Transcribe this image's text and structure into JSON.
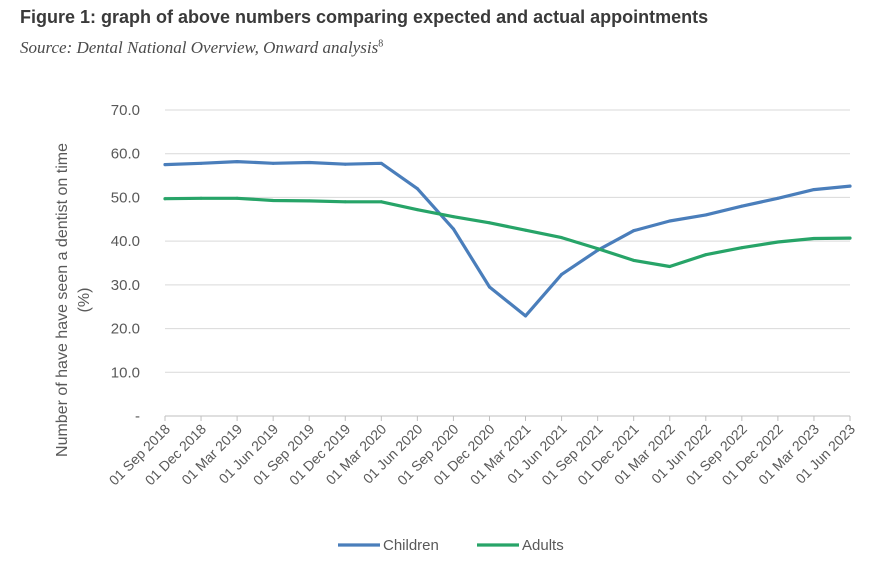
{
  "figure": {
    "title": "Figure 1: graph of above numbers comparing expected and actual appointments",
    "source": "Source: Dental National Overview, Onward analysis",
    "source_footnote": "8"
  },
  "chart_data": {
    "type": "line",
    "title": "",
    "xlabel": "",
    "ylabel_line1": "Number of have have seen a dentist on time",
    "ylabel_line2": "(%)",
    "ylim": [
      0,
      70
    ],
    "yticks": [
      {
        "value": 0,
        "label": "-"
      },
      {
        "value": 10,
        "label": "10.0"
      },
      {
        "value": 20,
        "label": "20.0"
      },
      {
        "value": 30,
        "label": "30.0"
      },
      {
        "value": 40,
        "label": "40.0"
      },
      {
        "value": 50,
        "label": "50.0"
      },
      {
        "value": 60,
        "label": "60.0"
      },
      {
        "value": 70,
        "label": "70.0"
      }
    ],
    "grid": true,
    "legend_position": "bottom",
    "categories": [
      "01 Sep 2018",
      "01 Dec 2018",
      "01 Mar 2019",
      "01 Jun 2019",
      "01 Sep 2019",
      "01 Dec 2019",
      "01 Mar 2020",
      "01 Jun 2020",
      "01 Sep 2020",
      "01 Dec 2020",
      "01 Mar 2021",
      "01 Jun 2021",
      "01 Sep 2021",
      "01 Dec 2021",
      "01 Mar 2022",
      "01 Jun 2022",
      "01 Sep 2022",
      "01 Dec 2022",
      "01 Mar 2023",
      "01 Jun 2023"
    ],
    "series": [
      {
        "name": "Children",
        "color": "#4a7ebb",
        "values": [
          57.5,
          57.8,
          58.2,
          57.8,
          58.0,
          57.6,
          57.8,
          52.0,
          42.8,
          29.5,
          22.9,
          32.4,
          37.9,
          42.4,
          44.6,
          46.0,
          48.0,
          49.8,
          51.8,
          52.6
        ]
      },
      {
        "name": "Adults",
        "color": "#27a468",
        "values": [
          49.7,
          49.8,
          49.8,
          49.3,
          49.2,
          49.0,
          49.0,
          47.2,
          45.6,
          44.2,
          42.5,
          40.8,
          38.3,
          35.6,
          34.2,
          36.9,
          38.5,
          39.8,
          40.6,
          40.7
        ]
      }
    ]
  }
}
